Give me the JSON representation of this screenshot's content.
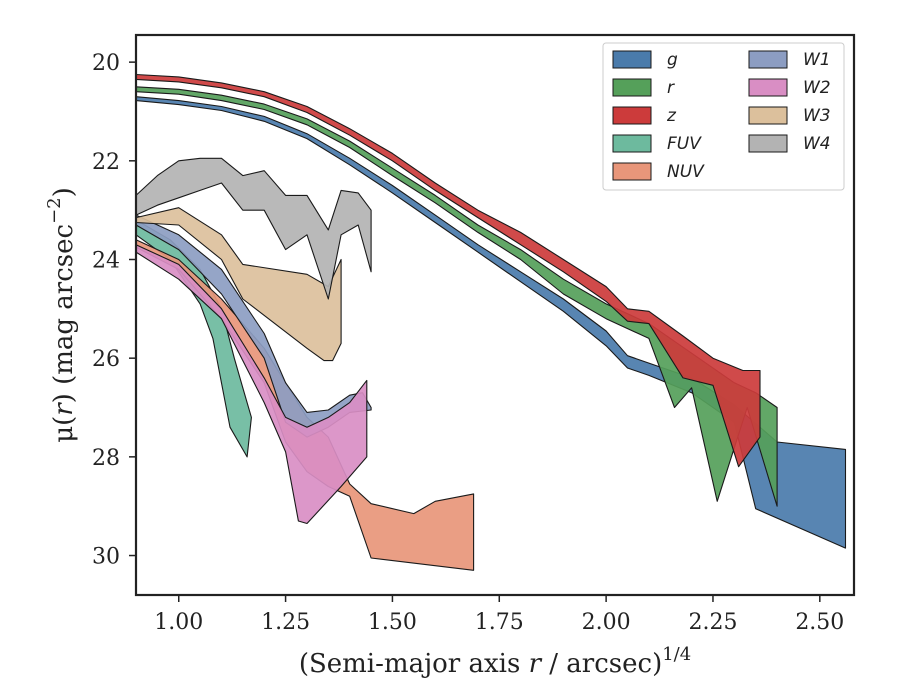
{
  "chart_data": {
    "type": "area",
    "xlabel_main": "(Semi-major axis ",
    "xlabel_var": "r",
    "xlabel_tail": " / arcsec)",
    "xlabel_exp": "1/4",
    "ylabel_main": "μ(",
    "ylabel_var": "r",
    "ylabel_tail": ") (mag arcsec",
    "ylabel_exp": "−2",
    "ylabel_close": ")",
    "xlim": [
      0.9,
      2.58
    ],
    "ylim": [
      30.8,
      19.45
    ],
    "y_inverted": true,
    "x_ticks": [
      "1.00",
      "1.25",
      "1.50",
      "1.75",
      "2.00",
      "2.25",
      "2.50"
    ],
    "x_tick_values": [
      1.0,
      1.25,
      1.5,
      1.75,
      2.0,
      2.25,
      2.5
    ],
    "y_ticks": [
      "20",
      "22",
      "24",
      "26",
      "28",
      "30"
    ],
    "y_tick_values": [
      20,
      22,
      24,
      26,
      28,
      30
    ],
    "legend": {
      "position": "top-right",
      "columns": 2
    },
    "series": [
      {
        "name": "g",
        "color": "#4a7bab",
        "upper": [
          [
            0.9,
            20.7
          ],
          [
            1.0,
            20.78
          ],
          [
            1.1,
            20.9
          ],
          [
            1.2,
            21.1
          ],
          [
            1.3,
            21.45
          ],
          [
            1.4,
            21.95
          ],
          [
            1.5,
            22.5
          ],
          [
            1.6,
            23.1
          ],
          [
            1.7,
            23.7
          ],
          [
            1.8,
            24.25
          ],
          [
            1.9,
            24.8
          ],
          [
            2.0,
            25.45
          ],
          [
            2.05,
            25.95
          ],
          [
            2.1,
            26.1
          ],
          [
            2.2,
            26.4
          ],
          [
            2.3,
            26.95
          ],
          [
            2.4,
            27.7
          ],
          [
            2.56,
            27.85
          ]
        ],
        "lower": [
          [
            0.9,
            20.78
          ],
          [
            1.0,
            20.86
          ],
          [
            1.1,
            20.98
          ],
          [
            1.2,
            21.2
          ],
          [
            1.3,
            21.55
          ],
          [
            1.4,
            22.08
          ],
          [
            1.5,
            22.65
          ],
          [
            1.6,
            23.25
          ],
          [
            1.7,
            23.85
          ],
          [
            1.8,
            24.45
          ],
          [
            1.9,
            25.05
          ],
          [
            2.0,
            25.75
          ],
          [
            2.05,
            26.2
          ],
          [
            2.1,
            26.35
          ],
          [
            2.2,
            26.7
          ],
          [
            2.3,
            27.3
          ],
          [
            2.35,
            29.05
          ],
          [
            2.56,
            29.85
          ]
        ]
      },
      {
        "name": "r",
        "color": "#55a05a",
        "upper": [
          [
            0.9,
            20.5
          ],
          [
            1.0,
            20.55
          ],
          [
            1.1,
            20.67
          ],
          [
            1.2,
            20.85
          ],
          [
            1.3,
            21.15
          ],
          [
            1.4,
            21.6
          ],
          [
            1.5,
            22.15
          ],
          [
            1.6,
            22.7
          ],
          [
            1.7,
            23.3
          ],
          [
            1.8,
            23.8
          ],
          [
            1.9,
            24.4
          ],
          [
            2.0,
            24.9
          ],
          [
            2.1,
            25.3
          ],
          [
            2.2,
            25.9
          ],
          [
            2.3,
            26.5
          ],
          [
            2.35,
            26.7
          ],
          [
            2.4,
            27.0
          ]
        ],
        "lower": [
          [
            0.9,
            20.6
          ],
          [
            1.0,
            20.65
          ],
          [
            1.1,
            20.78
          ],
          [
            1.2,
            20.96
          ],
          [
            1.3,
            21.27
          ],
          [
            1.4,
            21.73
          ],
          [
            1.5,
            22.3
          ],
          [
            1.6,
            22.85
          ],
          [
            1.7,
            23.45
          ],
          [
            1.8,
            24.0
          ],
          [
            1.9,
            24.7
          ],
          [
            2.0,
            25.2
          ],
          [
            2.1,
            25.6
          ],
          [
            2.16,
            27.0
          ],
          [
            2.2,
            26.6
          ],
          [
            2.26,
            28.9
          ],
          [
            2.33,
            27.0
          ],
          [
            2.4,
            29.0
          ]
        ]
      },
      {
        "name": "z",
        "color": "#cc3b3b",
        "upper": [
          [
            0.9,
            20.25
          ],
          [
            1.0,
            20.3
          ],
          [
            1.1,
            20.42
          ],
          [
            1.2,
            20.6
          ],
          [
            1.3,
            20.9
          ],
          [
            1.4,
            21.35
          ],
          [
            1.5,
            21.85
          ],
          [
            1.6,
            22.45
          ],
          [
            1.7,
            23.0
          ],
          [
            1.8,
            23.45
          ],
          [
            1.9,
            24.0
          ],
          [
            2.0,
            24.55
          ],
          [
            2.05,
            25.0
          ],
          [
            2.1,
            25.05
          ],
          [
            2.18,
            25.55
          ],
          [
            2.25,
            26.0
          ],
          [
            2.32,
            26.25
          ],
          [
            2.36,
            26.25
          ]
        ],
        "lower": [
          [
            0.9,
            20.35
          ],
          [
            1.0,
            20.4
          ],
          [
            1.1,
            20.52
          ],
          [
            1.2,
            20.7
          ],
          [
            1.3,
            21.02
          ],
          [
            1.4,
            21.48
          ],
          [
            1.5,
            22.0
          ],
          [
            1.6,
            22.6
          ],
          [
            1.7,
            23.15
          ],
          [
            1.8,
            23.7
          ],
          [
            1.9,
            24.25
          ],
          [
            2.0,
            24.85
          ],
          [
            2.05,
            25.25
          ],
          [
            2.1,
            25.3
          ],
          [
            2.18,
            26.4
          ],
          [
            2.25,
            26.55
          ],
          [
            2.31,
            28.2
          ],
          [
            2.36,
            27.6
          ]
        ]
      },
      {
        "name": "FUV",
        "color": "#6dba9e",
        "upper": [
          [
            0.9,
            23.2
          ],
          [
            0.98,
            23.6
          ],
          [
            1.05,
            24.2
          ],
          [
            1.1,
            25.0
          ],
          [
            1.13,
            26.0
          ],
          [
            1.15,
            26.6
          ],
          [
            1.17,
            27.2
          ]
        ],
        "lower": [
          [
            0.9,
            23.5
          ],
          [
            0.98,
            24.0
          ],
          [
            1.05,
            24.9
          ],
          [
            1.08,
            25.6
          ],
          [
            1.12,
            27.4
          ],
          [
            1.16,
            28.0
          ]
        ]
      },
      {
        "name": "NUV",
        "color": "#e8967a",
        "upper": [
          [
            0.9,
            23.6
          ],
          [
            1.0,
            24.0
          ],
          [
            1.1,
            24.8
          ],
          [
            1.2,
            25.8
          ],
          [
            1.3,
            27.2
          ],
          [
            1.35,
            27.6
          ],
          [
            1.4,
            28.55
          ],
          [
            1.45,
            28.95
          ],
          [
            1.55,
            29.15
          ],
          [
            1.6,
            28.9
          ],
          [
            1.69,
            28.75
          ]
        ],
        "lower": [
          [
            0.9,
            23.75
          ],
          [
            1.0,
            24.2
          ],
          [
            1.1,
            25.2
          ],
          [
            1.2,
            26.5
          ],
          [
            1.25,
            27.7
          ],
          [
            1.3,
            28.3
          ],
          [
            1.35,
            28.6
          ],
          [
            1.4,
            28.8
          ],
          [
            1.45,
            30.05
          ],
          [
            1.69,
            30.3
          ]
        ]
      },
      {
        "name": "W1",
        "color": "#8c9dc2",
        "upper": [
          [
            0.9,
            23.1
          ],
          [
            1.0,
            23.5
          ],
          [
            1.1,
            24.2
          ],
          [
            1.2,
            25.5
          ],
          [
            1.25,
            26.5
          ],
          [
            1.3,
            27.1
          ],
          [
            1.35,
            27.05
          ],
          [
            1.4,
            26.75
          ],
          [
            1.43,
            26.7
          ],
          [
            1.45,
            27.0
          ]
        ],
        "lower": [
          [
            0.9,
            23.3
          ],
          [
            1.0,
            23.8
          ],
          [
            1.1,
            24.7
          ],
          [
            1.2,
            26.0
          ],
          [
            1.25,
            27.3
          ],
          [
            1.3,
            27.6
          ],
          [
            1.35,
            27.4
          ],
          [
            1.4,
            27.1
          ],
          [
            1.45,
            27.05
          ]
        ]
      },
      {
        "name": "W2",
        "color": "#d98ec4",
        "upper": [
          [
            0.9,
            23.7
          ],
          [
            1.0,
            24.1
          ],
          [
            1.1,
            25.0
          ],
          [
            1.2,
            26.4
          ],
          [
            1.25,
            27.2
          ],
          [
            1.3,
            27.4
          ],
          [
            1.35,
            27.2
          ],
          [
            1.4,
            26.9
          ],
          [
            1.44,
            26.45
          ]
        ],
        "lower": [
          [
            0.9,
            23.85
          ],
          [
            1.0,
            24.4
          ],
          [
            1.1,
            25.2
          ],
          [
            1.2,
            26.9
          ],
          [
            1.25,
            27.9
          ],
          [
            1.28,
            29.3
          ],
          [
            1.3,
            29.35
          ],
          [
            1.38,
            28.6
          ],
          [
            1.44,
            28.0
          ]
        ]
      },
      {
        "name": "W3",
        "color": "#dcc09c",
        "upper": [
          [
            0.9,
            23.15
          ],
          [
            1.0,
            22.95
          ],
          [
            1.1,
            23.5
          ],
          [
            1.15,
            24.1
          ],
          [
            1.3,
            24.3
          ],
          [
            1.35,
            24.55
          ],
          [
            1.38,
            24.0
          ]
        ],
        "lower": [
          [
            0.9,
            23.25
          ],
          [
            1.0,
            23.3
          ],
          [
            1.1,
            24.0
          ],
          [
            1.15,
            24.8
          ],
          [
            1.3,
            25.8
          ],
          [
            1.34,
            26.05
          ],
          [
            1.36,
            26.05
          ],
          [
            1.38,
            25.7
          ]
        ]
      },
      {
        "name": "W4",
        "color": "#b3b3b3",
        "upper": [
          [
            0.9,
            22.7
          ],
          [
            0.95,
            22.3
          ],
          [
            1.0,
            22.0
          ],
          [
            1.05,
            21.95
          ],
          [
            1.1,
            21.95
          ],
          [
            1.15,
            22.3
          ],
          [
            1.2,
            22.2
          ],
          [
            1.25,
            22.7
          ],
          [
            1.3,
            22.7
          ],
          [
            1.35,
            23.4
          ],
          [
            1.38,
            22.6
          ],
          [
            1.42,
            22.65
          ],
          [
            1.45,
            23.0
          ]
        ],
        "lower": [
          [
            0.9,
            23.1
          ],
          [
            0.95,
            22.9
          ],
          [
            1.0,
            22.75
          ],
          [
            1.05,
            22.6
          ],
          [
            1.1,
            22.45
          ],
          [
            1.15,
            23.0
          ],
          [
            1.2,
            23.0
          ],
          [
            1.25,
            23.8
          ],
          [
            1.3,
            23.5
          ],
          [
            1.35,
            24.8
          ],
          [
            1.38,
            23.5
          ],
          [
            1.42,
            23.3
          ],
          [
            1.45,
            24.25
          ]
        ]
      }
    ]
  }
}
